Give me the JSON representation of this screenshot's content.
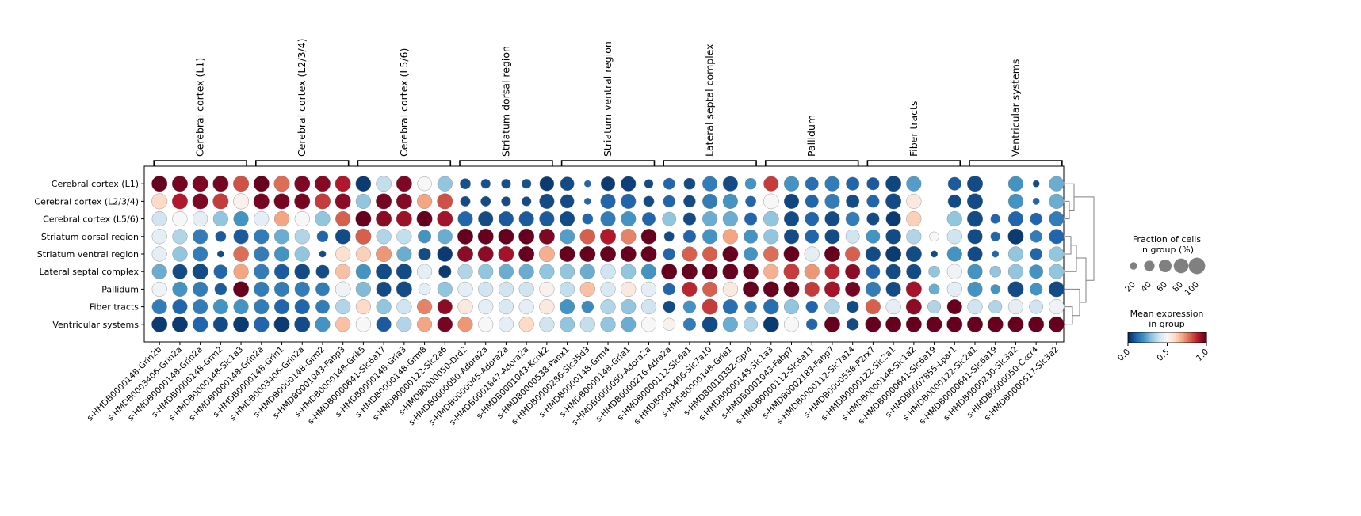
{
  "chart_data": {
    "type": "dotplot",
    "rows": [
      "Cerebral cortex (L1)",
      "Cerebral cortex (L2/3/4)",
      "Cerebral cortex (L5/6)",
      "Striatum dorsal region",
      "Striatum ventral region",
      "Lateral septal complex",
      "Pallidum",
      "Fiber tracts",
      "Ventricular systems"
    ],
    "groups": [
      {
        "label": "Cerebral cortex (L1)",
        "genes": [
          "s-HMDB0000148-Grin2b",
          "s-HMDB0003406-Grin2a",
          "s-HMDB0000148-Grin2a",
          "s-HMDB0000148-Grm2",
          "s-HMDB0000148-Slc1a3"
        ]
      },
      {
        "label": "Cerebral cortex (L2/3/4)",
        "genes": [
          "s-HMDB0000148-Grin2a",
          "s-HMDB0000148-Grin1",
          "s-HMDB0003406-Grin2a",
          "s-HMDB0000148-Grm2",
          "s-HMDB0001043-Fabp3"
        ]
      },
      {
        "label": "Cerebral cortex (L5/6)",
        "genes": [
          "s-HMDB0000148-Grik5",
          "s-HMDB0000641-Slc6a17",
          "s-HMDB0000148-Gria3",
          "s-HMDB0000148-Grm8",
          "s-HMDB0000122-Slc2a6"
        ]
      },
      {
        "label": "Striatum dorsal region",
        "genes": [
          "s-HMDB0000050-Drd2",
          "s-HMDB0000050-Adora2a",
          "s-HMDB0000045-Adora2a",
          "s-HMDB0001847-Adora2a",
          "s-HMDB0001043-Kcnk2"
        ]
      },
      {
        "label": "Striatum ventral region",
        "genes": [
          "s-HMDB0000538-Panx1",
          "s-HMDB0000286-Slc35d3",
          "s-HMDB0000148-Grm4",
          "s-HMDB0000148-Gria1",
          "s-HMDB0000050-Adora2a"
        ]
      },
      {
        "label": "Lateral septal complex",
        "genes": [
          "s-HMDB0000216-Adra2a",
          "s-HMDB0000112-Slc6a1",
          "s-HMDB0003406-Slc7a10",
          "s-HMDB0000148-Gria1",
          "s-HMDB0010382-Gpr4"
        ]
      },
      {
        "label": "Pallidum",
        "genes": [
          "s-HMDB0000148-Slc1a3",
          "s-HMDB0001043-Fabp7",
          "s-HMDB0000112-Slc6a11",
          "s-HMDB0002183-Fabp7",
          "s-HMDB0000112-Slc7a14"
        ]
      },
      {
        "label": "Fiber tracts",
        "genes": [
          "s-HMDB0000538-P2rx7",
          "s-HMDB0000122-Slc2a1",
          "s-HMDB0000148-Slc1a2",
          "s-HMDB0000641-Slc6a19",
          "s-HMDB0007855-Lpar1"
        ]
      },
      {
        "label": "Ventricular systems",
        "genes": [
          "s-HMDB0000122-Slc2a1",
          "s-HMDB0000641-Slc6a19",
          "s-HMDB0000230-Slc3a2",
          "s-HMDB0000050-Cxcr4",
          "s-HMDB0000517-Slc3a2"
        ]
      }
    ],
    "mean_expression": [
      [
        1.0,
        0.98,
        0.97,
        0.98,
        0.82,
        1.0,
        0.78,
        0.97,
        0.96,
        0.9,
        0.02,
        0.38,
        0.97,
        0.5,
        0.3,
        0.06,
        0.06,
        0.06,
        0.06,
        0.02,
        0.05,
        0.1,
        0.02,
        0.03,
        0.05,
        0.1,
        0.05,
        0.15,
        0.05,
        0.2,
        0.85,
        0.2,
        0.12,
        0.15,
        0.1,
        0.08,
        0.04,
        0.22,
        0.5,
        0.08,
        0.05,
        0.2,
        0.2,
        0.05,
        0.25
      ],
      [
        0.6,
        0.9,
        0.97,
        0.85,
        0.52,
        0.98,
        0.98,
        0.98,
        0.85,
        0.95,
        0.3,
        0.98,
        0.96,
        0.7,
        0.82,
        0.05,
        0.05,
        0.05,
        0.05,
        0.05,
        0.05,
        0.1,
        0.1,
        0.1,
        0.05,
        0.1,
        0.05,
        0.15,
        0.2,
        0.1,
        0.5,
        0.04,
        0.1,
        0.15,
        0.05,
        0.1,
        0.05,
        0.55,
        0.5,
        0.05,
        0.05,
        0.3,
        0.2,
        0.1,
        0.25
      ],
      [
        0.4,
        0.5,
        0.45,
        0.3,
        0.2,
        0.45,
        0.7,
        0.5,
        0.3,
        0.8,
        1.0,
        0.95,
        0.93,
        1.0,
        0.92,
        0.1,
        0.05,
        0.08,
        0.08,
        0.08,
        0.05,
        0.1,
        0.15,
        0.2,
        0.1,
        0.3,
        0.05,
        0.25,
        0.25,
        0.1,
        0.3,
        0.05,
        0.1,
        0.05,
        0.15,
        0.05,
        0.02,
        0.62,
        0.5,
        0.3,
        0.05,
        0.1,
        0.1,
        0.1,
        0.15
      ],
      [
        0.45,
        0.35,
        0.15,
        0.08,
        0.08,
        0.15,
        0.25,
        0.35,
        0.1,
        0.05,
        0.8,
        0.35,
        0.38,
        0.2,
        0.25,
        1.0,
        1.0,
        1.0,
        1.0,
        0.97,
        0.22,
        0.8,
        0.9,
        0.75,
        1.0,
        0.05,
        0.1,
        0.2,
        0.7,
        0.2,
        0.3,
        0.05,
        0.1,
        0.05,
        0.4,
        0.2,
        0.05,
        0.35,
        0.5,
        0.4,
        0.05,
        0.1,
        0.02,
        0.15,
        0.1
      ],
      [
        0.45,
        0.3,
        0.15,
        0.05,
        0.78,
        0.15,
        0.2,
        0.3,
        0.05,
        0.58,
        0.62,
        0.72,
        0.25,
        0.05,
        0.02,
        0.95,
        0.95,
        0.92,
        1.0,
        0.68,
        1.0,
        1.0,
        1.0,
        1.0,
        1.0,
        0.1,
        0.8,
        0.8,
        1.0,
        0.2,
        0.78,
        1.0,
        0.45,
        1.0,
        0.8,
        0.05,
        0.02,
        0.05,
        0.05,
        0.2,
        0.05,
        0.1,
        0.3,
        0.1,
        0.3
      ],
      [
        0.25,
        0.05,
        0.05,
        0.1,
        0.7,
        0.15,
        0.08,
        0.05,
        0.05,
        0.65,
        0.2,
        0.05,
        0.05,
        0.45,
        0.02,
        0.35,
        0.3,
        0.25,
        0.25,
        0.3,
        0.3,
        0.25,
        0.4,
        0.3,
        0.2,
        1.0,
        1.0,
        1.0,
        1.0,
        1.0,
        0.68,
        0.85,
        0.72,
        0.88,
        0.95,
        0.1,
        0.05,
        0.05,
        0.3,
        0.48,
        0.2,
        0.3,
        0.3,
        0.2,
        0.3
      ],
      [
        0.48,
        0.2,
        0.15,
        0.08,
        1.0,
        0.15,
        0.15,
        0.15,
        0.15,
        0.48,
        0.28,
        0.05,
        0.05,
        0.45,
        0.3,
        0.45,
        0.4,
        0.4,
        0.4,
        0.52,
        0.38,
        0.65,
        0.42,
        0.55,
        0.45,
        0.1,
        0.88,
        0.8,
        0.55,
        1.0,
        1.0,
        1.0,
        0.85,
        0.92,
        0.98,
        0.15,
        0.05,
        0.92,
        0.25,
        0.45,
        0.2,
        0.2,
        0.05,
        0.2,
        0.05
      ],
      [
        0.15,
        0.1,
        0.15,
        0.2,
        0.2,
        0.15,
        0.1,
        0.1,
        0.15,
        0.35,
        0.6,
        0.3,
        0.4,
        0.75,
        0.95,
        0.55,
        0.45,
        0.42,
        0.45,
        0.55,
        0.2,
        0.18,
        0.35,
        0.3,
        0.4,
        0.05,
        0.2,
        0.85,
        0.12,
        0.15,
        0.12,
        0.3,
        0.1,
        0.35,
        0.05,
        0.8,
        0.45,
        0.95,
        0.35,
        1.0,
        0.4,
        0.35,
        0.45,
        0.4,
        0.48
      ],
      [
        0.02,
        0.02,
        0.1,
        0.05,
        0.02,
        0.1,
        0.02,
        0.05,
        0.2,
        0.65,
        0.5,
        0.08,
        0.35,
        0.7,
        0.98,
        0.72,
        0.5,
        0.45,
        0.6,
        0.4,
        0.3,
        0.38,
        0.3,
        0.25,
        0.5,
        0.52,
        0.15,
        0.05,
        0.25,
        0.35,
        0.02,
        0.5,
        0.1,
        1.0,
        0.05,
        1.0,
        1.0,
        1.0,
        1.0,
        1.0,
        1.0,
        1.0,
        1.0,
        1.0,
        1.0
      ]
    ],
    "fraction_of_cells": [
      [
        92,
        92,
        92,
        92,
        92,
        92,
        92,
        92,
        92,
        92,
        88,
        88,
        92,
        76,
        84,
        43,
        34,
        34,
        34,
        78,
        72,
        17,
        76,
        84,
        30,
        50,
        50,
        84,
        84,
        48,
        84,
        84,
        66,
        84,
        66,
        60,
        92,
        84,
        0,
        66,
        92,
        0,
        84,
        17,
        84
      ],
      [
        92,
        92,
        92,
        92,
        92,
        92,
        92,
        92,
        92,
        92,
        84,
        92,
        92,
        84,
        92,
        38,
        38,
        34,
        34,
        84,
        72,
        17,
        84,
        84,
        43,
        55,
        55,
        84,
        84,
        43,
        88,
        84,
        66,
        84,
        66,
        60,
        92,
        84,
        0,
        66,
        92,
        0,
        84,
        17,
        84
      ],
      [
        84,
        84,
        84,
        84,
        84,
        84,
        84,
        84,
        84,
        84,
        92,
        92,
        92,
        92,
        92,
        84,
        84,
        84,
        84,
        84,
        84,
        43,
        84,
        84,
        66,
        72,
        60,
        84,
        84,
        60,
        88,
        84,
        72,
        84,
        72,
        60,
        84,
        84,
        0,
        84,
        92,
        34,
        84,
        55,
        84
      ],
      [
        84,
        84,
        84,
        43,
        84,
        84,
        84,
        84,
        48,
        88,
        92,
        84,
        84,
        66,
        84,
        92,
        92,
        92,
        92,
        92,
        84,
        88,
        92,
        88,
        88,
        38,
        60,
        84,
        84,
        72,
        84,
        84,
        72,
        84,
        72,
        72,
        88,
        84,
        34,
        84,
        84,
        34,
        92,
        55,
        84
      ],
      [
        84,
        84,
        84,
        17,
        88,
        84,
        84,
        84,
        17,
        84,
        84,
        92,
        84,
        60,
        88,
        92,
        92,
        92,
        92,
        92,
        92,
        92,
        92,
        92,
        92,
        55,
        84,
        84,
        92,
        72,
        88,
        92,
        84,
        92,
        84,
        84,
        92,
        92,
        17,
        84,
        84,
        17,
        84,
        55,
        84
      ],
      [
        84,
        84,
        92,
        72,
        84,
        84,
        84,
        88,
        66,
        84,
        84,
        92,
        92,
        84,
        60,
        84,
        84,
        84,
        84,
        84,
        84,
        84,
        84,
        84,
        84,
        92,
        92,
        92,
        92,
        88,
        84,
        92,
        84,
        84,
        84,
        72,
        84,
        84,
        48,
        84,
        84,
        48,
        84,
        72,
        84
      ],
      [
        84,
        84,
        84,
        55,
        92,
        84,
        84,
        84,
        72,
        88,
        84,
        84,
        92,
        55,
        84,
        84,
        84,
        84,
        84,
        84,
        84,
        84,
        84,
        84,
        84,
        55,
        84,
        84,
        84,
        92,
        92,
        92,
        84,
        92,
        84,
        84,
        84,
        92,
        43,
        84,
        84,
        34,
        92,
        60,
        92
      ],
      [
        84,
        84,
        84,
        84,
        84,
        84,
        84,
        84,
        72,
        84,
        84,
        84,
        84,
        84,
        84,
        84,
        84,
        84,
        84,
        84,
        84,
        55,
        84,
        84,
        84,
        55,
        60,
        92,
        84,
        55,
        88,
        84,
        55,
        84,
        55,
        84,
        84,
        92,
        66,
        84,
        84,
        66,
        84,
        72,
        84
      ],
      [
        92,
        92,
        88,
        84,
        92,
        88,
        92,
        92,
        84,
        84,
        84,
        84,
        84,
        84,
        88,
        84,
        84,
        84,
        84,
        84,
        84,
        84,
        84,
        84,
        84,
        60,
        60,
        92,
        84,
        72,
        92,
        84,
        48,
        92,
        55,
        92,
        92,
        92,
        92,
        92,
        92,
        92,
        92,
        92,
        92
      ]
    ],
    "dendrogram": true,
    "size_legend": {
      "title": "Fraction of cells\nin group (%)",
      "ticks": [
        20,
        40,
        60,
        80,
        100
      ]
    },
    "color_legend": {
      "title": "Mean expression\nin group",
      "ticks": [
        0.0,
        0.5,
        1.0
      ],
      "tick_labels": [
        "0.0",
        "0.5",
        "1.0"
      ],
      "colormap": "RdBu_r"
    }
  }
}
